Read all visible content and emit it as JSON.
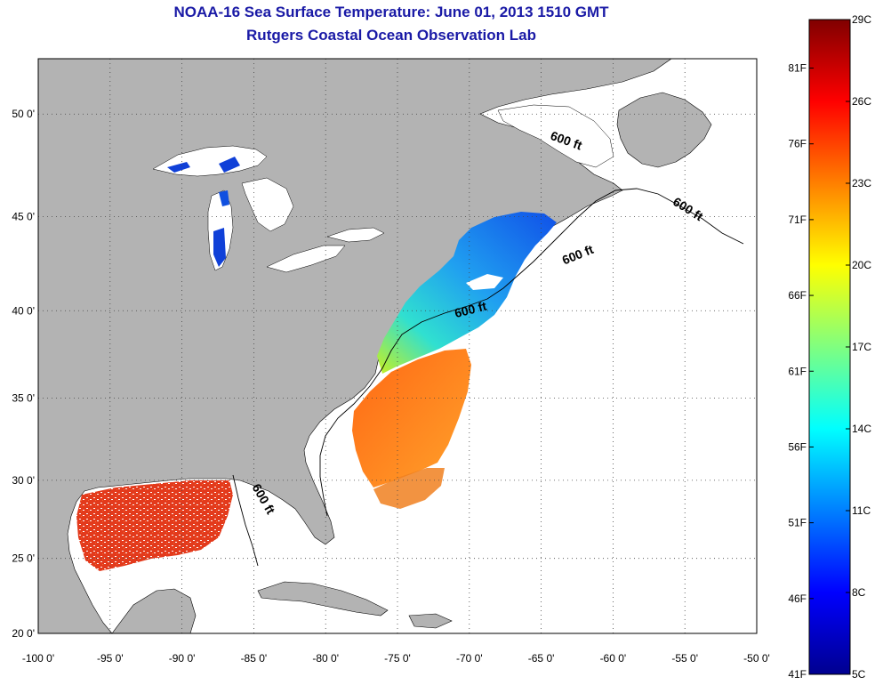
{
  "title_line1": "NOAA-16 Sea Surface Temperature:  June 01, 2013 1510 GMT",
  "title_line2": "Rutgers Coastal Ocean Observation Lab",
  "axes": {
    "lat_ticks": [
      {
        "value": 50,
        "label": "50 0'"
      },
      {
        "value": 45,
        "label": "45 0'"
      },
      {
        "value": 40,
        "label": "40 0'"
      },
      {
        "value": 35,
        "label": "35 0'"
      },
      {
        "value": 30,
        "label": "30 0'"
      },
      {
        "value": 25,
        "label": "25 0'"
      },
      {
        "value": 20,
        "label": "20 0'"
      }
    ],
    "lon_ticks": [
      {
        "value": -100,
        "label": "-100 0'"
      },
      {
        "value": -95,
        "label": "-95 0'"
      },
      {
        "value": -90,
        "label": "-90 0'"
      },
      {
        "value": -85,
        "label": "-85 0'"
      },
      {
        "value": -80,
        "label": "-80 0'"
      },
      {
        "value": -75,
        "label": "-75 0'"
      },
      {
        "value": -70,
        "label": "-70 0'"
      },
      {
        "value": -65,
        "label": "-65 0'"
      },
      {
        "value": -60,
        "label": "-60 0'"
      },
      {
        "value": -55,
        "label": "-55 0'"
      },
      {
        "value": -50,
        "label": "-50 0'"
      }
    ]
  },
  "contour_labels": [
    "600 ft",
    "600 ft",
    "600 ft",
    "600 ft",
    "600 ft"
  ],
  "colorbar": {
    "min_c": 5,
    "max_c": 29,
    "celsius_ticks": [
      {
        "value": 29,
        "label": "29C"
      },
      {
        "value": 26,
        "label": "26C"
      },
      {
        "value": 23,
        "label": "23C"
      },
      {
        "value": 20,
        "label": "20C"
      },
      {
        "value": 17,
        "label": "17C"
      },
      {
        "value": 14,
        "label": "14C"
      },
      {
        "value": 11,
        "label": "11C"
      },
      {
        "value": 8,
        "label": "8C"
      },
      {
        "value": 5,
        "label": "5C"
      }
    ],
    "fahrenheit_ticks": [
      {
        "value": 81,
        "label": "81F"
      },
      {
        "value": 76,
        "label": "76F"
      },
      {
        "value": 71,
        "label": "71F"
      },
      {
        "value": 66,
        "label": "66F"
      },
      {
        "value": 61,
        "label": "61F"
      },
      {
        "value": 56,
        "label": "56F"
      },
      {
        "value": 51,
        "label": "51F"
      },
      {
        "value": 46,
        "label": "46F"
      },
      {
        "value": 41,
        "label": "41F"
      }
    ]
  },
  "colors": {
    "land": "#b3b3b3",
    "water": "#ffffff",
    "grid": "#444444",
    "title": "#1a1aa6"
  }
}
